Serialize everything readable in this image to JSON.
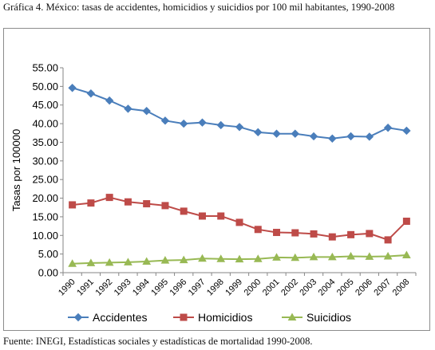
{
  "caption": "Gráfica 4. México: tasas de accidentes, homicidios y suicidios por 100 mil habitantes, 1990-2008",
  "source": "Fuente: INEGI, Estadísticas sociales y estadísticas de mortalidad 1990-2008.",
  "chart_data": {
    "type": "line",
    "title": "",
    "xlabel": "",
    "ylabel": "Tasas por 100000",
    "ylim": [
      0,
      55
    ],
    "yticks": [
      "0.00",
      "5.00",
      "10.00",
      "15.00",
      "20.00",
      "25.00",
      "30.00",
      "35.00",
      "40.00",
      "45.00",
      "50.00",
      "55.00"
    ],
    "grid": false,
    "legend": "bottom",
    "categories": [
      "1990",
      "1991",
      "1992",
      "1993",
      "1994",
      "1995",
      "1996",
      "1997",
      "1998",
      "1999",
      "2000",
      "2001",
      "2002",
      "2003",
      "2004",
      "2005",
      "2006",
      "2007",
      "2008"
    ],
    "series": [
      {
        "name": "Accidentes",
        "color": "#4a7ebb",
        "marker": "diamond",
        "values": [
          49.6,
          48.1,
          46.2,
          44.0,
          43.4,
          40.8,
          40.0,
          40.3,
          39.6,
          39.1,
          37.7,
          37.3,
          37.3,
          36.6,
          36.0,
          36.6,
          36.5,
          38.9,
          38.1
        ]
      },
      {
        "name": "Homicidios",
        "color": "#be4b48",
        "marker": "square",
        "values": [
          18.2,
          18.7,
          20.2,
          19.0,
          18.5,
          18.0,
          16.5,
          15.2,
          15.2,
          13.5,
          11.6,
          10.8,
          10.7,
          10.4,
          9.6,
          10.2,
          10.5,
          8.8,
          13.8
        ]
      },
      {
        "name": "Suicidios",
        "color": "#98b954",
        "marker": "triangle",
        "values": [
          2.4,
          2.6,
          2.7,
          2.8,
          3.0,
          3.3,
          3.4,
          3.8,
          3.7,
          3.6,
          3.7,
          4.1,
          4.0,
          4.2,
          4.2,
          4.4,
          4.3,
          4.4,
          4.7
        ]
      }
    ]
  }
}
